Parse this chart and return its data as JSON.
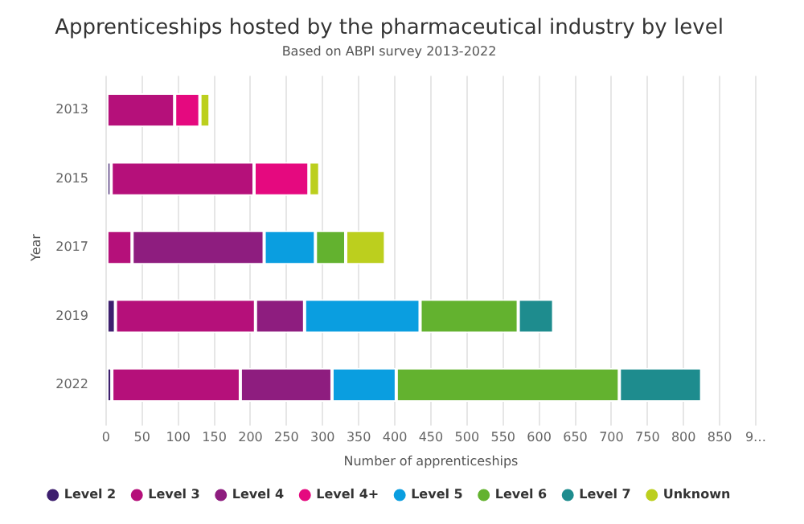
{
  "chart_data": {
    "type": "bar",
    "orientation": "horizontal",
    "stacked": true,
    "title": "Apprenticeships hosted by the pharmaceutical industry by level",
    "subtitle": "Based on ABPI survey 2013-2022",
    "xlabel": "Number of apprenticeships",
    "ylabel": "Year",
    "categories": [
      "2013",
      "2015",
      "2017",
      "2019",
      "2022"
    ],
    "series": [
      {
        "name": "Level 2",
        "color": "#3d1f6e",
        "values": [
          null,
          7,
          null,
          13,
          8
        ]
      },
      {
        "name": "Level 3",
        "color": "#b5107a",
        "values": [
          95,
          198,
          36,
          194,
          178
        ]
      },
      {
        "name": "Level 4",
        "color": "#8e1d7f",
        "values": [
          null,
          null,
          183,
          68,
          127
        ]
      },
      {
        "name": "Level 4+",
        "color": "#e5097f",
        "values": [
          35,
          76,
          null,
          null,
          null
        ]
      },
      {
        "name": "Level 5",
        "color": "#0a9ee0",
        "values": [
          null,
          null,
          71,
          160,
          89
        ]
      },
      {
        "name": "Level 6",
        "color": "#63b22f",
        "values": [
          null,
          null,
          42,
          136,
          309
        ]
      },
      {
        "name": "Level 7",
        "color": "#1e8c8e",
        "values": [
          null,
          null,
          null,
          49,
          114
        ]
      },
      {
        "name": "Unknown",
        "color": "#bccf1e",
        "values": [
          14,
          15,
          55,
          null,
          null
        ]
      }
    ],
    "xlim": [
      0,
      900
    ],
    "xticks": [
      0,
      50,
      100,
      150,
      200,
      250,
      300,
      350,
      400,
      450,
      500,
      550,
      600,
      650,
      700,
      750,
      800,
      850,
      {
        "value": 900,
        "label": "9…"
      }
    ],
    "grid": "x",
    "legend": "bottom"
  }
}
